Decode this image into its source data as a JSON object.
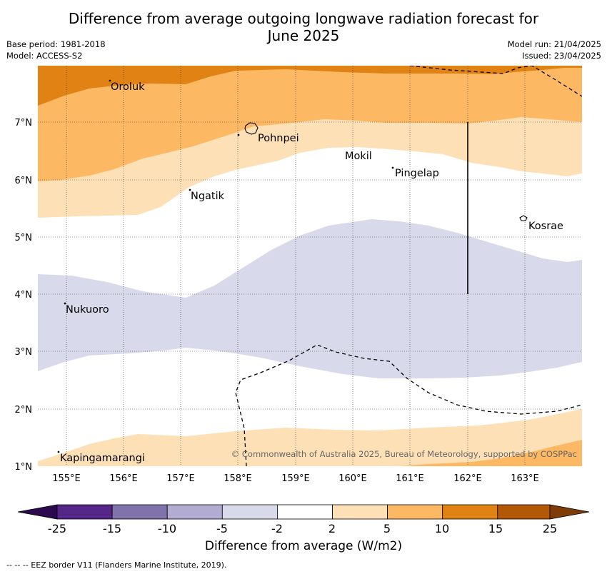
{
  "header": {
    "title_line1": "Difference from average outgoing longwave radiation forecast for",
    "title_line2": "June 2025",
    "base_period": "Base period: 1981-2018",
    "model": "Model: ACCESS-S2",
    "model_run": "Model run: 21/04/2025",
    "issued": "Issued: 23/04/2025"
  },
  "map": {
    "lat_labels": [
      "7°N",
      "6°N",
      "5°N",
      "4°N",
      "3°N",
      "2°N",
      "1°N"
    ],
    "lon_labels": [
      "155°E",
      "156°E",
      "157°E",
      "158°E",
      "159°E",
      "160°E",
      "161°E",
      "162°E",
      "163°E"
    ],
    "places": [
      "Oroluk",
      "Pohnpei",
      "Mokil",
      "Pingelap",
      "Ngatik",
      "Kosrae",
      "Nukuoro",
      "Kapingamarangi"
    ],
    "copyright": "© Commonwealth of Australia 2025, Bureau of Meteorology, supported by COSPPac"
  },
  "colorbar": {
    "colors": [
      "#2d0a4e",
      "#542788",
      "#8073ac",
      "#b2abd2",
      "#d8daeb",
      "#ffffff",
      "#fee0b6",
      "#fdb863",
      "#e08214",
      "#b35806",
      "#7f3b08"
    ],
    "ticks": [
      "-25",
      "-15",
      "-10",
      "-5",
      "-2",
      "2",
      "5",
      "10",
      "15",
      "25"
    ],
    "label": "Difference from average (W/m2)"
  },
  "footnote": "--  --  -- EEZ border V11 (Flanders Marine Institute, 2019)."
}
